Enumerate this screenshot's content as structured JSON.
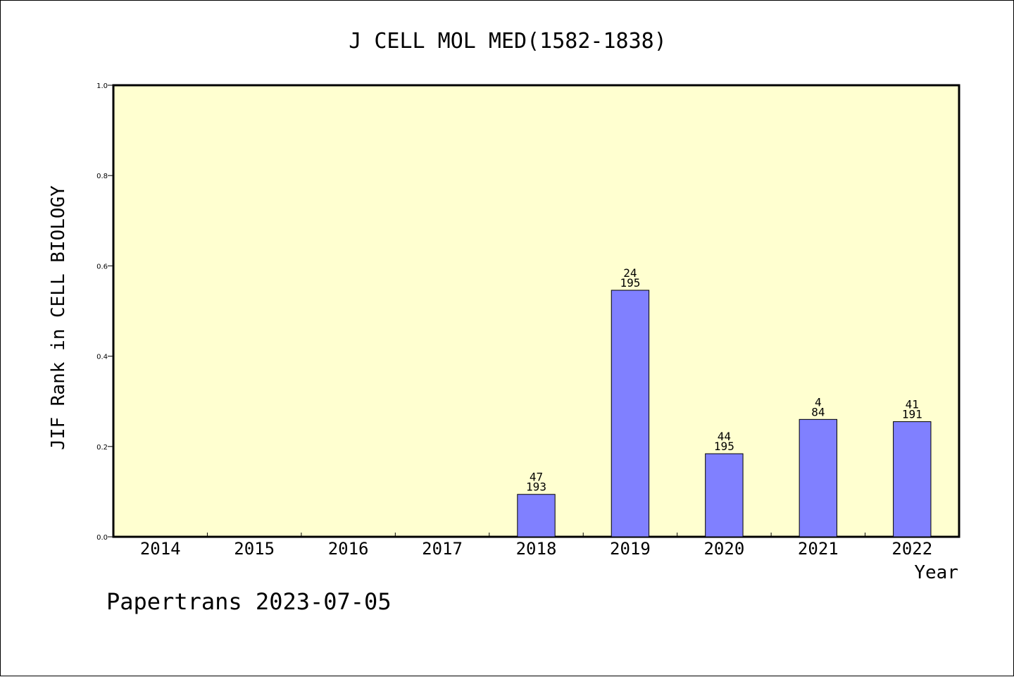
{
  "footer": {
    "text": "Papertrans 2023-07-05"
  },
  "chart_data": {
    "type": "bar",
    "title": "J CELL MOL MED(1582-1838)",
    "xlabel": "Year",
    "ylabel": "JIF Rank in CELL BIOLOGY",
    "categories": [
      "2014",
      "2015",
      "2016",
      "2017",
      "2018",
      "2019",
      "2020",
      "2021",
      "2022"
    ],
    "values": [
      null,
      null,
      null,
      null,
      0.094,
      0.546,
      0.184,
      0.26,
      0.255
    ],
    "rank": [
      null,
      null,
      null,
      null,
      "47",
      "24",
      "44",
      "4",
      "41"
    ],
    "total": [
      null,
      null,
      null,
      null,
      "193",
      "195",
      "195",
      "84",
      "191"
    ],
    "ylim": [
      0,
      1.0
    ],
    "yticks": [
      "0.0",
      "0.2",
      "0.4",
      "0.6",
      "0.8",
      "1.0"
    ],
    "grid": false,
    "colors": {
      "plot_background": "#ffffd0",
      "bar": "#8080ff"
    }
  }
}
